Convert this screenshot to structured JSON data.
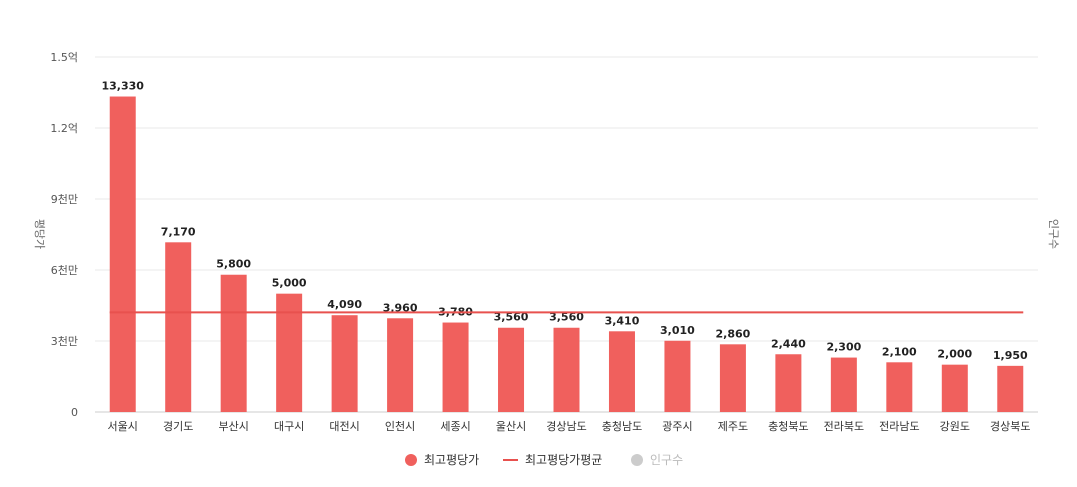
{
  "chart_data": {
    "type": "bar",
    "categories": [
      "서울시",
      "경기도",
      "부산시",
      "대구시",
      "대전시",
      "인천시",
      "세종시",
      "울산시",
      "경상남도",
      "충청남도",
      "광주시",
      "제주도",
      "충청북도",
      "전라북도",
      "전라남도",
      "강원도",
      "경상북도"
    ],
    "series": [
      {
        "name": "최고평당가",
        "type": "bar",
        "color": "#f0605d",
        "values": [
          13330,
          7170,
          5800,
          5000,
          4090,
          3960,
          3780,
          3560,
          3560,
          3410,
          3010,
          2860,
          2440,
          2300,
          2100,
          2000,
          1950
        ],
        "data_labels": [
          "13,330",
          "7,170",
          "5,800",
          "5,000",
          "4,090",
          "3,960",
          "3,780",
          "3,560",
          "3,560",
          "3,410",
          "3,010",
          "2,860",
          "2,440",
          "2,300",
          "2,100",
          "2,000",
          "1,950"
        ]
      },
      {
        "name": "최고평당가평균",
        "type": "line",
        "color": "#e8514e",
        "value": 4208
      },
      {
        "name": "인구수",
        "type": "hidden",
        "color": "#cccccc"
      }
    ],
    "ylabel": "평당가",
    "y2label": "인구수",
    "ylim": [
      0,
      15000
    ],
    "yticks": [
      0,
      3000,
      6000,
      9000,
      12000,
      15000
    ],
    "ytick_labels": [
      "0",
      "3천만",
      "6천만",
      "9천만",
      "1.2억",
      "1.5억"
    ],
    "grid": true,
    "legend_position": "bottom"
  }
}
